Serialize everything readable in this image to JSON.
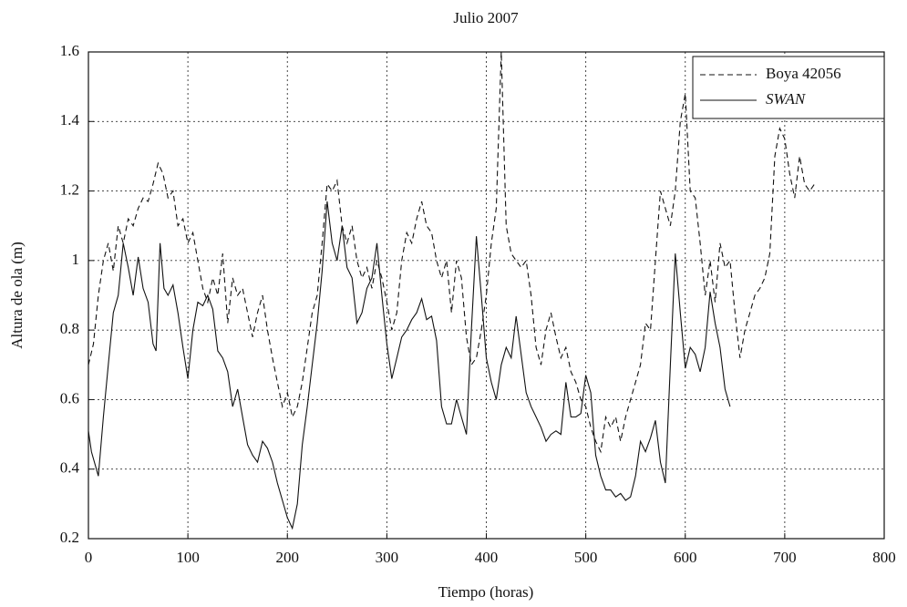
{
  "chart_data": {
    "type": "line",
    "title": "Julio 2007",
    "xlabel": "Tiempo (horas)",
    "ylabel": "Altura de ola (m)",
    "xlim": [
      0,
      800
    ],
    "xticks": [
      0,
      100,
      200,
      300,
      400,
      500,
      600,
      700,
      800
    ],
    "ylim": [
      0.2,
      1.6
    ],
    "yticks": [
      0.2,
      0.4,
      0.6,
      0.8,
      1,
      1.2,
      1.4,
      1.6
    ],
    "grid": true,
    "legend": "upper right",
    "series": [
      {
        "name": "Boya 42056",
        "color": "#111111",
        "dash": "dashed",
        "x": [
          0,
          5,
          10,
          15,
          20,
          25,
          30,
          35,
          40,
          45,
          50,
          55,
          60,
          65,
          70,
          75,
          80,
          85,
          90,
          95,
          100,
          105,
          110,
          115,
          120,
          125,
          130,
          135,
          140,
          145,
          150,
          155,
          160,
          165,
          170,
          175,
          180,
          185,
          190,
          195,
          200,
          205,
          210,
          215,
          220,
          225,
          230,
          235,
          240,
          245,
          250,
          255,
          260,
          265,
          270,
          275,
          280,
          285,
          290,
          295,
          300,
          305,
          310,
          315,
          320,
          325,
          330,
          335,
          340,
          345,
          350,
          355,
          360,
          365,
          370,
          375,
          380,
          385,
          390,
          395,
          400,
          405,
          410,
          415,
          420,
          425,
          430,
          435,
          440,
          445,
          450,
          455,
          460,
          465,
          470,
          475,
          480,
          485,
          490,
          495,
          500,
          505,
          510,
          515,
          520,
          525,
          530,
          535,
          540,
          545,
          550,
          555,
          560,
          565,
          570,
          575,
          580,
          585,
          590,
          595,
          600,
          605,
          610,
          615,
          620,
          625,
          630,
          635,
          640,
          645,
          650,
          655,
          660,
          665,
          670,
          675,
          680,
          685,
          690,
          695,
          700,
          705,
          710,
          715,
          720,
          725,
          730
        ],
        "values": [
          0.7,
          0.76,
          0.9,
          1.0,
          1.05,
          0.97,
          1.1,
          1.05,
          1.12,
          1.1,
          1.15,
          1.18,
          1.17,
          1.22,
          1.28,
          1.25,
          1.18,
          1.2,
          1.1,
          1.12,
          1.05,
          1.08,
          1.0,
          0.92,
          0.88,
          0.95,
          0.9,
          1.02,
          0.82,
          0.95,
          0.9,
          0.92,
          0.85,
          0.78,
          0.85,
          0.9,
          0.8,
          0.72,
          0.65,
          0.58,
          0.62,
          0.55,
          0.58,
          0.65,
          0.75,
          0.85,
          0.9,
          1.05,
          1.22,
          1.2,
          1.23,
          1.1,
          1.05,
          1.1,
          1.0,
          0.95,
          0.98,
          0.92,
          1.0,
          0.95,
          0.88,
          0.8,
          0.85,
          1.0,
          1.08,
          1.05,
          1.12,
          1.17,
          1.1,
          1.08,
          1.0,
          0.95,
          1.0,
          0.85,
          1.0,
          0.95,
          0.78,
          0.7,
          0.72,
          0.8,
          0.9,
          1.05,
          1.15,
          1.6,
          1.1,
          1.02,
          1.0,
          0.98,
          1.0,
          0.9,
          0.75,
          0.7,
          0.8,
          0.85,
          0.78,
          0.72,
          0.75,
          0.68,
          0.65,
          0.6,
          0.58,
          0.52,
          0.48,
          0.45,
          0.55,
          0.52,
          0.55,
          0.48,
          0.55,
          0.6,
          0.65,
          0.7,
          0.82,
          0.8,
          1.0,
          1.2,
          1.15,
          1.1,
          1.2,
          1.4,
          1.48,
          1.2,
          1.18,
          1.05,
          0.9,
          1.0,
          0.88,
          1.05,
          0.98,
          1.0,
          0.85,
          0.72,
          0.8,
          0.85,
          0.9,
          0.92,
          0.95,
          1.02,
          1.3,
          1.38,
          1.35,
          1.25,
          1.18,
          1.3,
          1.22,
          1.2,
          1.22
        ]
      },
      {
        "name": "SWAN",
        "color": "#111111",
        "dash": "solid",
        "x": [
          0,
          3,
          10,
          15,
          20,
          25,
          30,
          35,
          40,
          45,
          50,
          55,
          60,
          65,
          68,
          72,
          76,
          80,
          85,
          90,
          95,
          100,
          105,
          110,
          115,
          120,
          125,
          130,
          135,
          140,
          145,
          150,
          155,
          160,
          165,
          170,
          175,
          180,
          185,
          190,
          195,
          200,
          205,
          210,
          215,
          220,
          225,
          230,
          235,
          240,
          245,
          250,
          255,
          260,
          265,
          270,
          275,
          280,
          285,
          290,
          295,
          300,
          305,
          310,
          315,
          320,
          325,
          330,
          335,
          340,
          345,
          350,
          355,
          360,
          365,
          370,
          375,
          380,
          385,
          390,
          395,
          400,
          405,
          410,
          415,
          420,
          425,
          430,
          435,
          440,
          445,
          450,
          455,
          460,
          465,
          470,
          475,
          480,
          485,
          490,
          495,
          500,
          505,
          510,
          515,
          520,
          525,
          530,
          535,
          540,
          545,
          550,
          555,
          560,
          565,
          570,
          575,
          580,
          585,
          590,
          595,
          600,
          605,
          610,
          615,
          620,
          625,
          630,
          635,
          640,
          645
        ],
        "values": [
          0.51,
          0.45,
          0.38,
          0.55,
          0.7,
          0.85,
          0.9,
          1.05,
          0.98,
          0.9,
          1.01,
          0.92,
          0.88,
          0.76,
          0.74,
          1.05,
          0.92,
          0.9,
          0.93,
          0.85,
          0.75,
          0.66,
          0.8,
          0.88,
          0.87,
          0.9,
          0.86,
          0.74,
          0.72,
          0.68,
          0.58,
          0.63,
          0.55,
          0.47,
          0.44,
          0.42,
          0.48,
          0.46,
          0.42,
          0.36,
          0.31,
          0.26,
          0.23,
          0.3,
          0.47,
          0.58,
          0.7,
          0.82,
          0.97,
          1.17,
          1.05,
          1.0,
          1.1,
          0.98,
          0.95,
          0.82,
          0.85,
          0.92,
          0.95,
          1.05,
          0.9,
          0.76,
          0.66,
          0.72,
          0.78,
          0.8,
          0.83,
          0.85,
          0.89,
          0.83,
          0.84,
          0.77,
          0.58,
          0.53,
          0.53,
          0.6,
          0.55,
          0.5,
          0.8,
          1.07,
          0.9,
          0.72,
          0.65,
          0.6,
          0.7,
          0.75,
          0.72,
          0.84,
          0.73,
          0.62,
          0.58,
          0.55,
          0.52,
          0.48,
          0.5,
          0.51,
          0.5,
          0.65,
          0.55,
          0.55,
          0.56,
          0.67,
          0.62,
          0.44,
          0.38,
          0.34,
          0.34,
          0.32,
          0.33,
          0.31,
          0.32,
          0.38,
          0.48,
          0.45,
          0.49,
          0.54,
          0.42,
          0.36,
          0.7,
          1.02,
          0.85,
          0.69,
          0.75,
          0.73,
          0.68,
          0.75,
          0.91,
          0.82,
          0.75,
          0.63,
          0.58
        ]
      }
    ]
  }
}
